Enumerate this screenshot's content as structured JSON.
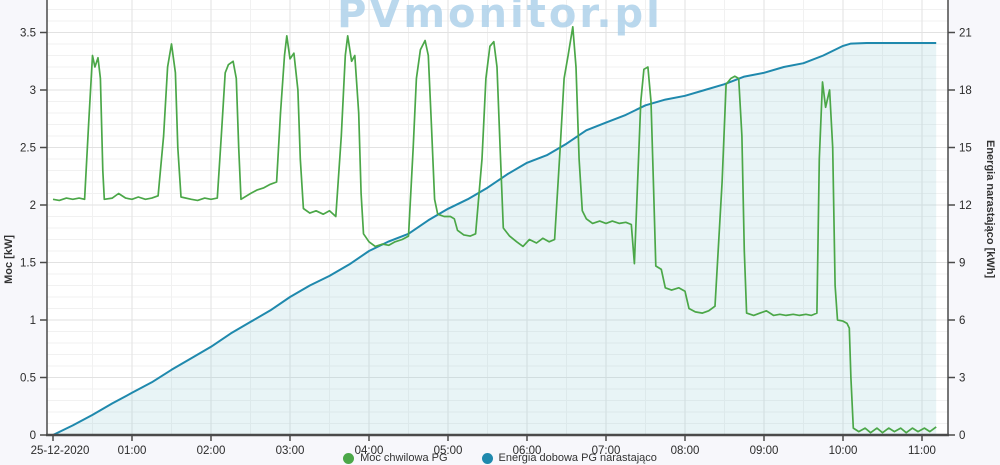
{
  "watermark": "PVmonitor.pl",
  "colors": {
    "power_line": "#4ba748",
    "energy_line": "#1f89ad",
    "energy_fill": "rgba(150,205,215,0.22)",
    "grid_major": "#e2e2e2",
    "grid_minor": "#f1f1f1",
    "axis_line": "#4a4a4a",
    "tick_text": "#2b2b2b",
    "plot_bg": "#ffffff",
    "outer_bg": "#f7f7fb",
    "watermark_color": "#aacfe9"
  },
  "axes": {
    "left": {
      "title": "Moc [kW]",
      "ticks": [
        "0",
        "0.5",
        "1",
        "1.5",
        "2",
        "2.5",
        "3",
        "3.5"
      ],
      "tick_values": [
        0,
        0.5,
        1,
        1.5,
        2,
        2.5,
        3,
        3.5
      ]
    },
    "right": {
      "title": "Energia narastająco [kWh]",
      "ticks": [
        "0",
        "3",
        "6",
        "9",
        "12",
        "15",
        "18",
        "21"
      ],
      "tick_values": [
        0,
        3,
        6,
        9,
        12,
        15,
        18,
        21
      ]
    },
    "x": {
      "tick_labels": [
        "25-12-2020",
        "01:00",
        "02:00",
        "03:00",
        "04:00",
        "05:00",
        "06:00",
        "07:00",
        "08:00",
        "09:00",
        "10:00",
        "11:00"
      ],
      "tick_hours": [
        0,
        1,
        2,
        3,
        4,
        5,
        6,
        7,
        8,
        9,
        10,
        11
      ]
    }
  },
  "legend": {
    "items": [
      {
        "label": "Moc chwilowa PG",
        "color": "#4ba748"
      },
      {
        "label": "Energia dobowa PG narastająco",
        "color": "#1f89ad"
      }
    ]
  },
  "chart_data": {
    "type": "line",
    "title": "",
    "xlabel": "",
    "x_unit": "hours after 00:00 on 25-12-2020",
    "xlim": [
      -0.08,
      11.33
    ],
    "left_ylabel": "Moc [kW]",
    "left_ylim": [
      0,
      3.78
    ],
    "right_ylabel": "Energia narastająco [kWh]",
    "right_ylim": [
      0,
      22.7
    ],
    "grid": true,
    "legend_position": "bottom",
    "series": [
      {
        "name": "Moc chwilowa PG",
        "yaxis": "left",
        "unit": "kW",
        "color": "#4ba748",
        "points": [
          [
            0,
            2.05
          ],
          [
            0.08,
            2.04
          ],
          [
            0.17,
            2.06
          ],
          [
            0.25,
            2.05
          ],
          [
            0.33,
            2.06
          ],
          [
            0.4,
            2.05
          ],
          [
            0.45,
            2.7
          ],
          [
            0.5,
            3.3
          ],
          [
            0.53,
            3.2
          ],
          [
            0.57,
            3.28
          ],
          [
            0.6,
            3.1
          ],
          [
            0.63,
            2.3
          ],
          [
            0.65,
            2.05
          ],
          [
            0.75,
            2.06
          ],
          [
            0.83,
            2.1
          ],
          [
            0.92,
            2.06
          ],
          [
            1,
            2.05
          ],
          [
            1.08,
            2.07
          ],
          [
            1.17,
            2.05
          ],
          [
            1.25,
            2.06
          ],
          [
            1.33,
            2.08
          ],
          [
            1.4,
            2.6
          ],
          [
            1.45,
            3.2
          ],
          [
            1.5,
            3.4
          ],
          [
            1.55,
            3.15
          ],
          [
            1.58,
            2.5
          ],
          [
            1.62,
            2.07
          ],
          [
            1.75,
            2.05
          ],
          [
            1.83,
            2.04
          ],
          [
            1.92,
            2.06
          ],
          [
            2,
            2.05
          ],
          [
            2.08,
            2.06
          ],
          [
            2.13,
            2.6
          ],
          [
            2.18,
            3.15
          ],
          [
            2.22,
            3.22
          ],
          [
            2.28,
            3.25
          ],
          [
            2.32,
            3.1
          ],
          [
            2.35,
            2.5
          ],
          [
            2.38,
            2.05
          ],
          [
            2.5,
            2.1
          ],
          [
            2.58,
            2.13
          ],
          [
            2.67,
            2.15
          ],
          [
            2.75,
            2.18
          ],
          [
            2.83,
            2.2
          ],
          [
            2.88,
            2.8
          ],
          [
            2.93,
            3.3
          ],
          [
            2.96,
            3.47
          ],
          [
            3,
            3.27
          ],
          [
            3.05,
            3.32
          ],
          [
            3.1,
            3
          ],
          [
            3.13,
            2.4
          ],
          [
            3.17,
            1.97
          ],
          [
            3.25,
            1.93
          ],
          [
            3.33,
            1.95
          ],
          [
            3.42,
            1.92
          ],
          [
            3.5,
            1.95
          ],
          [
            3.58,
            1.9
          ],
          [
            3.65,
            2.6
          ],
          [
            3.7,
            3.3
          ],
          [
            3.73,
            3.47
          ],
          [
            3.78,
            3.25
          ],
          [
            3.82,
            3.3
          ],
          [
            3.87,
            2.8
          ],
          [
            3.9,
            2.1
          ],
          [
            3.93,
            1.75
          ],
          [
            4,
            1.68
          ],
          [
            4.08,
            1.64
          ],
          [
            4.17,
            1.66
          ],
          [
            4.25,
            1.65
          ],
          [
            4.33,
            1.68
          ],
          [
            4.42,
            1.7
          ],
          [
            4.5,
            1.73
          ],
          [
            4.56,
            2.5
          ],
          [
            4.6,
            3.1
          ],
          [
            4.65,
            3.35
          ],
          [
            4.71,
            3.43
          ],
          [
            4.75,
            3.3
          ],
          [
            4.79,
            2.7
          ],
          [
            4.83,
            2.05
          ],
          [
            4.87,
            1.92
          ],
          [
            4.95,
            1.9
          ],
          [
            5.03,
            1.9
          ],
          [
            5.08,
            1.88
          ],
          [
            5.12,
            1.78
          ],
          [
            5.2,
            1.74
          ],
          [
            5.28,
            1.73
          ],
          [
            5.35,
            1.75
          ],
          [
            5.43,
            2.4
          ],
          [
            5.48,
            3.1
          ],
          [
            5.53,
            3.38
          ],
          [
            5.58,
            3.42
          ],
          [
            5.62,
            3.2
          ],
          [
            5.66,
            2.5
          ],
          [
            5.7,
            1.8
          ],
          [
            5.78,
            1.73
          ],
          [
            5.87,
            1.68
          ],
          [
            5.95,
            1.64
          ],
          [
            6.03,
            1.7
          ],
          [
            6.12,
            1.67
          ],
          [
            6.2,
            1.71
          ],
          [
            6.28,
            1.68
          ],
          [
            6.35,
            1.7
          ],
          [
            6.42,
            2.5
          ],
          [
            6.47,
            3.1
          ],
          [
            6.52,
            3.3
          ],
          [
            6.58,
            3.55
          ],
          [
            6.62,
            3.2
          ],
          [
            6.66,
            2.4
          ],
          [
            6.7,
            1.95
          ],
          [
            6.75,
            1.88
          ],
          [
            6.83,
            1.84
          ],
          [
            6.92,
            1.86
          ],
          [
            7,
            1.84
          ],
          [
            7.08,
            1.86
          ],
          [
            7.17,
            1.84
          ],
          [
            7.25,
            1.85
          ],
          [
            7.32,
            1.83
          ],
          [
            7.36,
            1.49
          ],
          [
            7.4,
            2.2
          ],
          [
            7.44,
            2.9
          ],
          [
            7.48,
            3.18
          ],
          [
            7.53,
            3.2
          ],
          [
            7.57,
            2.9
          ],
          [
            7.6,
            2.2
          ],
          [
            7.63,
            1.47
          ],
          [
            7.7,
            1.44
          ],
          [
            7.75,
            1.28
          ],
          [
            7.83,
            1.26
          ],
          [
            7.92,
            1.28
          ],
          [
            8,
            1.25
          ],
          [
            8.05,
            1.1
          ],
          [
            8.13,
            1.07
          ],
          [
            8.22,
            1.06
          ],
          [
            8.3,
            1.08
          ],
          [
            8.38,
            1.12
          ],
          [
            8.47,
            2.2
          ],
          [
            8.52,
            3.05
          ],
          [
            8.58,
            3.1
          ],
          [
            8.63,
            3.12
          ],
          [
            8.68,
            3.1
          ],
          [
            8.72,
            2.6
          ],
          [
            8.75,
            1.6
          ],
          [
            8.78,
            1.06
          ],
          [
            8.87,
            1.04
          ],
          [
            8.95,
            1.06
          ],
          [
            9.03,
            1.08
          ],
          [
            9.12,
            1.04
          ],
          [
            9.2,
            1.05
          ],
          [
            9.28,
            1.04
          ],
          [
            9.37,
            1.05
          ],
          [
            9.45,
            1.04
          ],
          [
            9.53,
            1.05
          ],
          [
            9.6,
            1.04
          ],
          [
            9.67,
            1.06
          ],
          [
            9.7,
            2.4
          ],
          [
            9.74,
            3.07
          ],
          [
            9.78,
            2.85
          ],
          [
            9.83,
            3
          ],
          [
            9.87,
            2.5
          ],
          [
            9.9,
            1.3
          ],
          [
            9.93,
            1
          ],
          [
            10,
            0.99
          ],
          [
            10.05,
            0.97
          ],
          [
            10.08,
            0.93
          ],
          [
            10.1,
            0.5
          ],
          [
            10.13,
            0.06
          ],
          [
            10.2,
            0.03
          ],
          [
            10.28,
            0.06
          ],
          [
            10.35,
            0.02
          ],
          [
            10.43,
            0.06
          ],
          [
            10.5,
            0.02
          ],
          [
            10.58,
            0.06
          ],
          [
            10.65,
            0.03
          ],
          [
            10.73,
            0.06
          ],
          [
            10.8,
            0.02
          ],
          [
            10.88,
            0.06
          ],
          [
            10.95,
            0.03
          ],
          [
            11.03,
            0.06
          ],
          [
            11.1,
            0.03
          ],
          [
            11.18,
            0.07
          ]
        ]
      },
      {
        "name": "Energia dobowa PG narastająco",
        "yaxis": "right",
        "unit": "kWh",
        "color": "#1f89ad",
        "area": true,
        "points": [
          [
            0,
            0
          ],
          [
            0.25,
            0.5
          ],
          [
            0.5,
            1.05
          ],
          [
            0.75,
            1.65
          ],
          [
            1,
            2.2
          ],
          [
            1.25,
            2.75
          ],
          [
            1.5,
            3.4
          ],
          [
            1.75,
            4
          ],
          [
            2,
            4.6
          ],
          [
            2.25,
            5.3
          ],
          [
            2.5,
            5.9
          ],
          [
            2.75,
            6.5
          ],
          [
            3,
            7.2
          ],
          [
            3.25,
            7.8
          ],
          [
            3.5,
            8.3
          ],
          [
            3.75,
            8.9
          ],
          [
            4,
            9.6
          ],
          [
            4.25,
            10.1
          ],
          [
            4.5,
            10.5
          ],
          [
            4.75,
            11.2
          ],
          [
            5,
            11.8
          ],
          [
            5.25,
            12.3
          ],
          [
            5.5,
            12.9
          ],
          [
            5.75,
            13.6
          ],
          [
            6,
            14.2
          ],
          [
            6.25,
            14.6
          ],
          [
            6.5,
            15.2
          ],
          [
            6.75,
            15.9
          ],
          [
            7,
            16.3
          ],
          [
            7.25,
            16.7
          ],
          [
            7.5,
            17.2
          ],
          [
            7.75,
            17.5
          ],
          [
            8,
            17.7
          ],
          [
            8.25,
            18
          ],
          [
            8.5,
            18.3
          ],
          [
            8.75,
            18.7
          ],
          [
            9,
            18.9
          ],
          [
            9.25,
            19.2
          ],
          [
            9.5,
            19.4
          ],
          [
            9.75,
            19.8
          ],
          [
            10,
            20.3
          ],
          [
            10.1,
            20.42
          ],
          [
            10.3,
            20.45
          ],
          [
            11.18,
            20.45
          ]
        ]
      }
    ]
  }
}
